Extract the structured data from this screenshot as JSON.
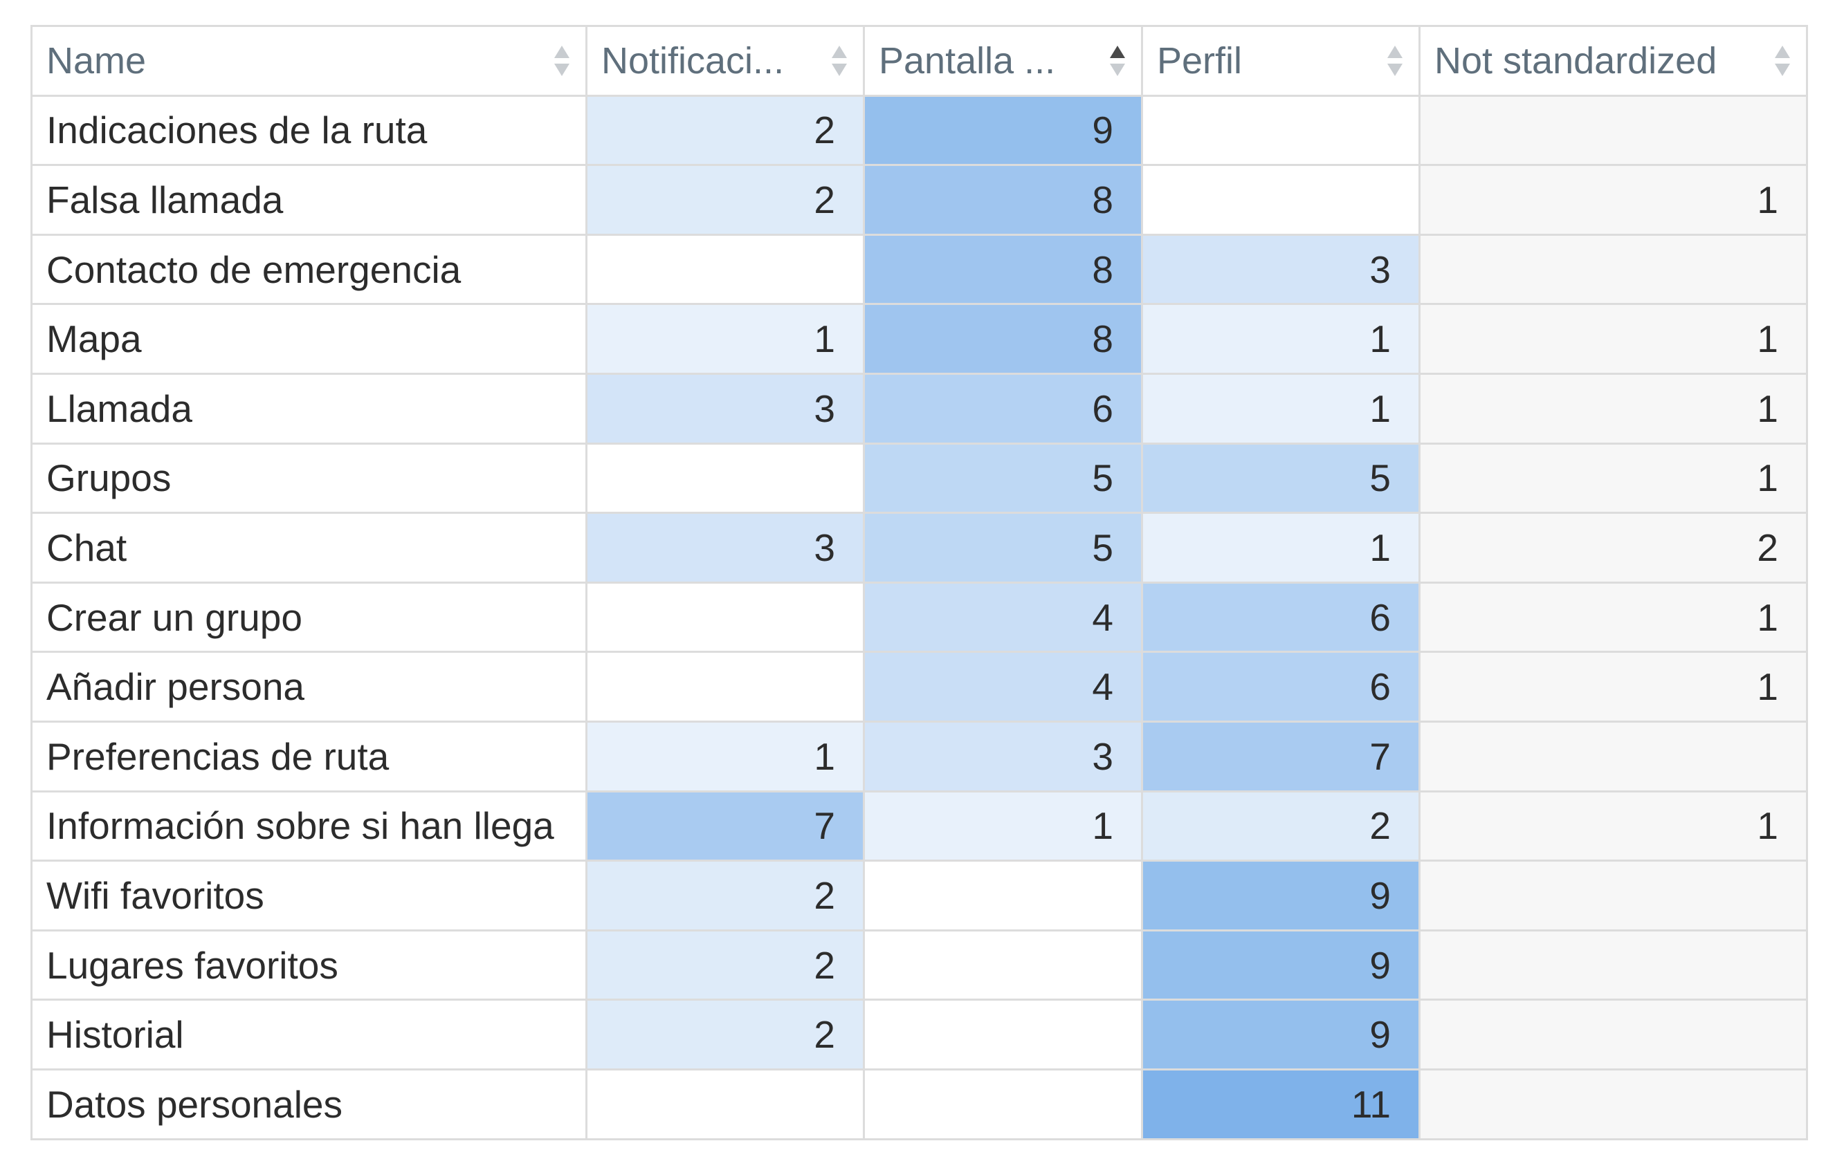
{
  "table": {
    "columns": [
      {
        "label": "Name",
        "sort": "none"
      },
      {
        "label": "Notificaci...",
        "sort": "none"
      },
      {
        "label": "Pantalla ...",
        "sort": "asc"
      },
      {
        "label": "Perfil",
        "sort": "none"
      },
      {
        "label": "Not standardized",
        "sort": "none"
      }
    ],
    "rows": [
      {
        "name": "Indicaciones de la ruta",
        "values": [
          "2",
          "9",
          "",
          ""
        ]
      },
      {
        "name": "Falsa llamada",
        "values": [
          "2",
          "8",
          "",
          "1"
        ]
      },
      {
        "name": "Contacto de emergencia",
        "values": [
          "",
          "8",
          "3",
          ""
        ]
      },
      {
        "name": "Mapa",
        "values": [
          "1",
          "8",
          "1",
          "1"
        ]
      },
      {
        "name": "Llamada",
        "values": [
          "3",
          "6",
          "1",
          "1"
        ]
      },
      {
        "name": "Grupos",
        "values": [
          "",
          "5",
          "5",
          "1"
        ]
      },
      {
        "name": "Chat",
        "values": [
          "3",
          "5",
          "1",
          "2"
        ]
      },
      {
        "name": "Crear un grupo",
        "values": [
          "",
          "4",
          "6",
          "1"
        ]
      },
      {
        "name": "Añadir persona",
        "values": [
          "",
          "4",
          "6",
          "1"
        ]
      },
      {
        "name": "Preferencias de ruta",
        "values": [
          "1",
          "3",
          "7",
          ""
        ]
      },
      {
        "name": "Información sobre si han llega",
        "values": [
          "7",
          "1",
          "2",
          "1"
        ]
      },
      {
        "name": "Wifi favoritos",
        "values": [
          "2",
          "",
          "9",
          ""
        ]
      },
      {
        "name": "Lugares favoritos",
        "values": [
          "2",
          "",
          "9",
          ""
        ]
      },
      {
        "name": "Historial",
        "values": [
          "2",
          "",
          "9",
          ""
        ]
      },
      {
        "name": "Datos personales",
        "values": [
          "",
          "",
          "11",
          ""
        ]
      }
    ]
  },
  "colors": {
    "heat_base": "#e8f1fb",
    "heat_max": "#7fb2ea",
    "not_standardized_bg": "#f7f7f7",
    "sort_active": "#4a4a4a",
    "sort_inactive": "#c8ccd0"
  }
}
